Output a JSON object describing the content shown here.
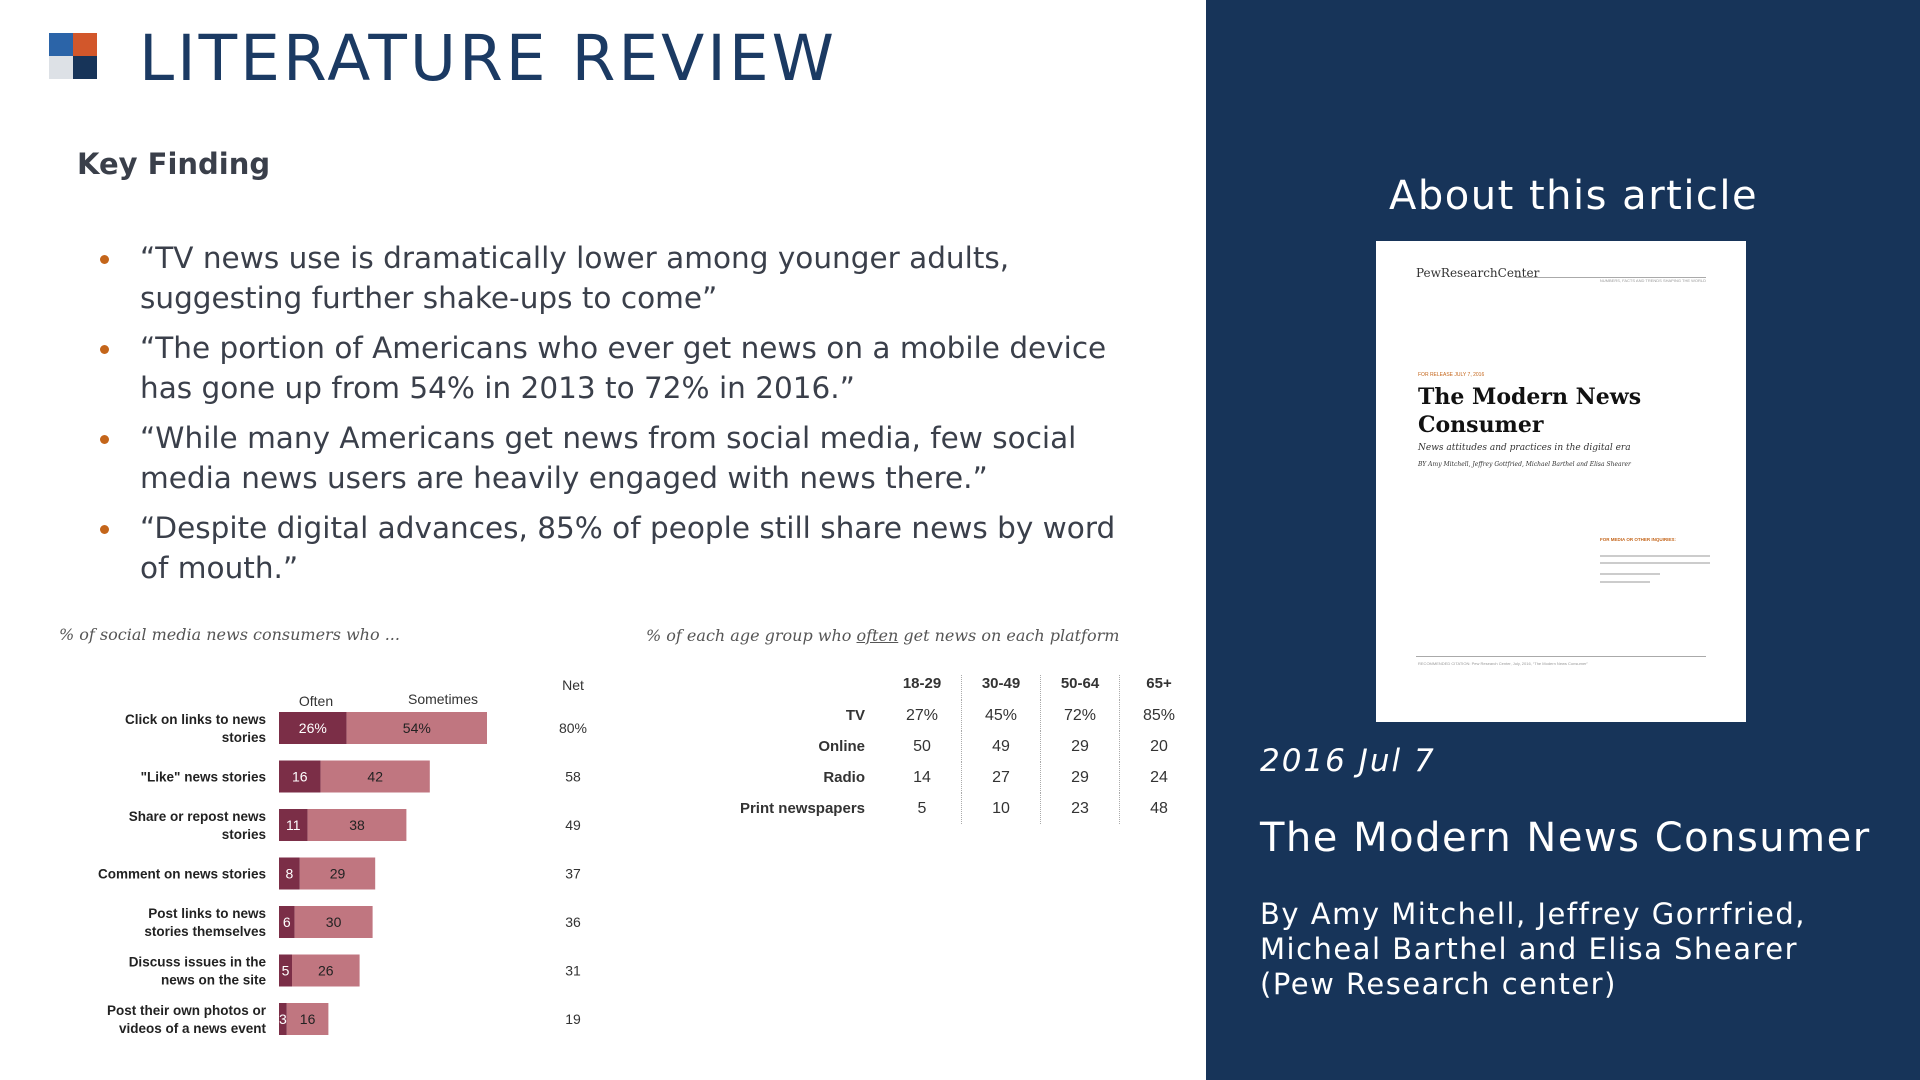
{
  "slide": {
    "title": "LITERATURE REVIEW",
    "logo_colors": {
      "top_left": "#2b64a8",
      "top_right": "#d2572b",
      "bottom_left": "#dde1e6",
      "bottom_right": "#173459"
    },
    "accent": "#c4651a"
  },
  "key_finding": {
    "heading": "Key Finding",
    "bullets": [
      "“TV news use is dramatically lower among younger adults, suggesting further shake-ups to come”",
      "“The portion of Americans who ever get news on a mobile device has gone up from 54% in 2013 to 72% in 2016.”",
      "“While many Americans get news from social media, few social media news users are heavily engaged with news there.”",
      "“Despite digital advances, 85% of people still share news by word of mouth.”"
    ]
  },
  "chart_data": [
    {
      "type": "bar",
      "stacked": true,
      "orientation": "horizontal",
      "title": "% of social media news consumers who ...",
      "net_label": "Net",
      "categories": [
        "Click on links to news stories",
        "\"Like\" news stories",
        "Share or repost news stories",
        "Comment on news stories",
        "Post links to news stories themselves",
        "Discuss issues in the news on the site",
        "Post their own photos or videos of a news event"
      ],
      "series": [
        {
          "name": "Often",
          "values": [
            26,
            16,
            11,
            8,
            6,
            5,
            3
          ],
          "labels": [
            "26%",
            "16",
            "11",
            "8",
            "6",
            "5",
            "3"
          ],
          "color": "#7b2e47"
        },
        {
          "name": "Sometimes",
          "values": [
            54,
            42,
            38,
            29,
            30,
            26,
            16
          ],
          "labels": [
            "54%",
            "42",
            "38",
            "29",
            "30",
            "26",
            "16"
          ],
          "color": "#c07680"
        }
      ],
      "net": [
        "80%",
        "58",
        "49",
        "37",
        "36",
        "31",
        "19"
      ]
    },
    {
      "type": "table",
      "title": "% of each age group who often get news on each platform",
      "title_parts": {
        "before": "% of each age group who ",
        "emphasis": "often",
        "after": " get news on each platform"
      },
      "columns": [
        "18-29",
        "30-49",
        "50-64",
        "65+"
      ],
      "rows": [
        {
          "label": "TV",
          "values": [
            "27%",
            "45%",
            "72%",
            "85%"
          ]
        },
        {
          "label": "Online",
          "values": [
            "50",
            "49",
            "29",
            "20"
          ]
        },
        {
          "label": "Radio",
          "values": [
            "14",
            "27",
            "29",
            "24"
          ]
        },
        {
          "label": "Print newspapers",
          "values": [
            "5",
            "10",
            "23",
            "48"
          ]
        }
      ]
    }
  ],
  "article": {
    "heading": "About this article",
    "cover": {
      "brand": "PewResearchCenter",
      "tagline": "NUMBERS, FACTS AND TRENDS SHAPING THE WORLD",
      "release": "FOR RELEASE JULY 7, 2016",
      "title": "The Modern News Consumer",
      "subtitle": "News attitudes and practices in the digital era",
      "byline": "BY Amy Mitchell, Jeffrey Gottfried, Michael Barthel and Elisa Shearer",
      "media_inquiries": "FOR MEDIA OR OTHER INQUIRIES:",
      "citation": "RECOMMENDED CITATION: Pew Research Center, July, 2016, “The Modern News Consumer”"
    },
    "date": "2016 Jul 7",
    "title": "The Modern News Consumer",
    "byline": "By Amy Mitchell, Jeffrey Gorrfried, Micheal Barthel and Elisa Shearer (Pew Research center)",
    "panel_color": "#173459"
  }
}
